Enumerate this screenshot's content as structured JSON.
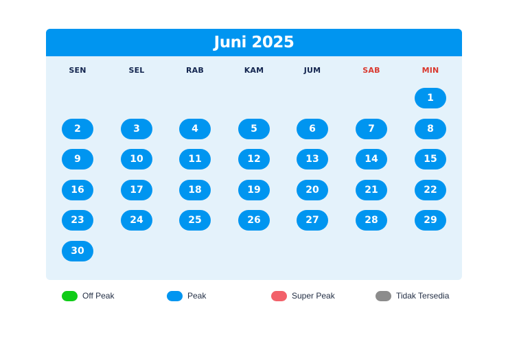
{
  "calendar": {
    "title": "Juni 2025",
    "weekdays": [
      {
        "label": "SEN",
        "weekend": false
      },
      {
        "label": "SEL",
        "weekend": false
      },
      {
        "label": "RAB",
        "weekend": false
      },
      {
        "label": "KAM",
        "weekend": false
      },
      {
        "label": "JUM",
        "weekend": false
      },
      {
        "label": "SAB",
        "weekend": true
      },
      {
        "label": "MIN",
        "weekend": true
      }
    ],
    "first_weekday_index": 6,
    "days": [
      {
        "day": "1",
        "status": "peak"
      },
      {
        "day": "2",
        "status": "peak"
      },
      {
        "day": "3",
        "status": "peak"
      },
      {
        "day": "4",
        "status": "peak"
      },
      {
        "day": "5",
        "status": "peak"
      },
      {
        "day": "6",
        "status": "peak"
      },
      {
        "day": "7",
        "status": "peak"
      },
      {
        "day": "8",
        "status": "peak"
      },
      {
        "day": "9",
        "status": "peak"
      },
      {
        "day": "10",
        "status": "peak"
      },
      {
        "day": "11",
        "status": "peak"
      },
      {
        "day": "12",
        "status": "peak"
      },
      {
        "day": "13",
        "status": "peak"
      },
      {
        "day": "14",
        "status": "peak"
      },
      {
        "day": "15",
        "status": "peak"
      },
      {
        "day": "16",
        "status": "peak"
      },
      {
        "day": "17",
        "status": "peak"
      },
      {
        "day": "18",
        "status": "peak"
      },
      {
        "day": "19",
        "status": "peak"
      },
      {
        "day": "20",
        "status": "peak"
      },
      {
        "day": "21",
        "status": "peak"
      },
      {
        "day": "22",
        "status": "peak"
      },
      {
        "day": "23",
        "status": "peak"
      },
      {
        "day": "24",
        "status": "peak"
      },
      {
        "day": "25",
        "status": "peak"
      },
      {
        "day": "26",
        "status": "peak"
      },
      {
        "day": "27",
        "status": "peak"
      },
      {
        "day": "28",
        "status": "peak"
      },
      {
        "day": "29",
        "status": "peak"
      },
      {
        "day": "30",
        "status": "peak"
      }
    ]
  },
  "legend": [
    {
      "key": "off-peak",
      "label": "Off Peak",
      "color": "#10cc18"
    },
    {
      "key": "peak",
      "label": "Peak",
      "color": "#0095f0"
    },
    {
      "key": "super-peak",
      "label": "Super Peak",
      "color": "#f2616a"
    },
    {
      "key": "tidak-tersedia",
      "label": "Tidak Tersedia",
      "color": "#8c8c8c"
    }
  ],
  "colors": {
    "header_bg": "#0095f0",
    "panel_bg": "#e4f2fb",
    "weekday_text": "#13254f",
    "weekend_text": "#d9382e"
  }
}
